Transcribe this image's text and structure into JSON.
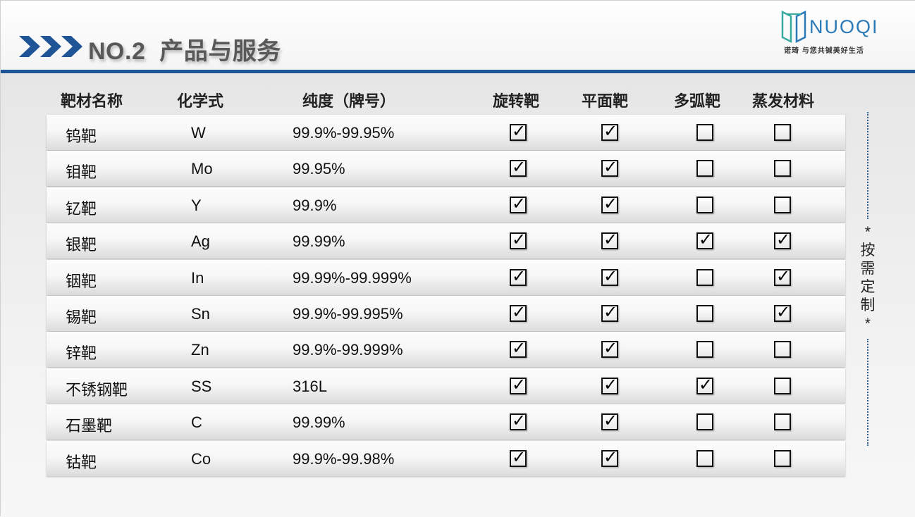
{
  "header": {
    "title": "NO.2  产品与服务",
    "accent_color": "#1f5597"
  },
  "logo": {
    "name": "NUOQI",
    "slogan": "诺琦 与您共铖美好生活"
  },
  "table": {
    "columns": [
      "靶材名称",
      "化学式",
      "纯度（牌号）",
      "旋转靶",
      "平面靶",
      "多弧靶",
      "蒸发材料"
    ],
    "rows": [
      {
        "name": "钨靶",
        "formula": "W",
        "purity": "99.9%-99.95%",
        "checks": [
          true,
          true,
          false,
          false
        ]
      },
      {
        "name": "钼靶",
        "formula": "Mo",
        "purity": "99.95%",
        "checks": [
          true,
          true,
          false,
          false
        ]
      },
      {
        "name": "钇靶",
        "formula": "Y",
        "purity": "99.9%",
        "checks": [
          true,
          true,
          false,
          false
        ]
      },
      {
        "name": "银靶",
        "formula": "Ag",
        "purity": "99.99%",
        "checks": [
          true,
          true,
          true,
          true
        ]
      },
      {
        "name": "铟靶",
        "formula": "In",
        "purity": "99.99%-99.999%",
        "checks": [
          true,
          true,
          false,
          true
        ]
      },
      {
        "name": "锡靶",
        "formula": "Sn",
        "purity": "99.9%-99.995%",
        "checks": [
          true,
          true,
          false,
          true
        ]
      },
      {
        "name": "锌靶",
        "formula": "Zn",
        "purity": "99.9%-99.999%",
        "checks": [
          true,
          true,
          false,
          false
        ]
      },
      {
        "name": "不锈钢靶",
        "formula": "SS",
        "purity": "316L",
        "checks": [
          true,
          true,
          true,
          false
        ]
      },
      {
        "name": "石墨靶",
        "formula": "C",
        "purity": "99.99%",
        "checks": [
          true,
          true,
          false,
          false
        ]
      },
      {
        "name": "钴靶",
        "formula": "Co",
        "purity": "99.9%-99.98%",
        "checks": [
          true,
          true,
          false,
          false
        ]
      }
    ]
  },
  "side_note": "*按需定制*"
}
